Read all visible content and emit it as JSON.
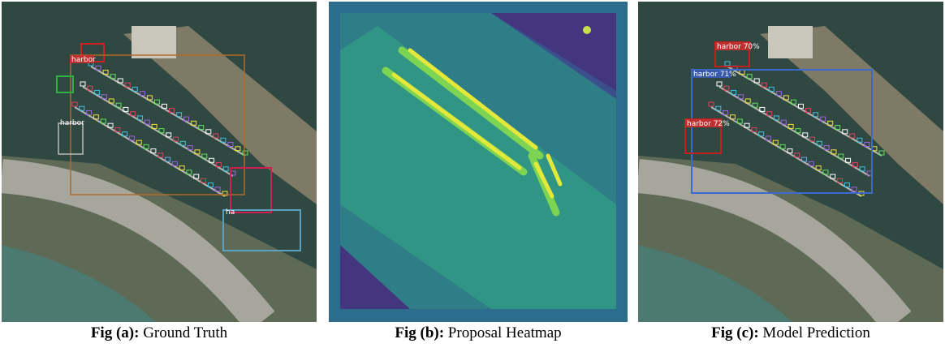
{
  "figures": [
    {
      "label": "Fig (a):",
      "caption": "Ground Truth",
      "box_labels": [
        "harbor",
        "harbor",
        "ha"
      ]
    },
    {
      "label": "Fig (b):",
      "caption": "Proposal Heatmap"
    },
    {
      "label": "Fig (c):",
      "caption": "Model Prediction",
      "box_labels": [
        "harbor 70%",
        "harbor 71%",
        "harbor 72%"
      ]
    }
  ]
}
